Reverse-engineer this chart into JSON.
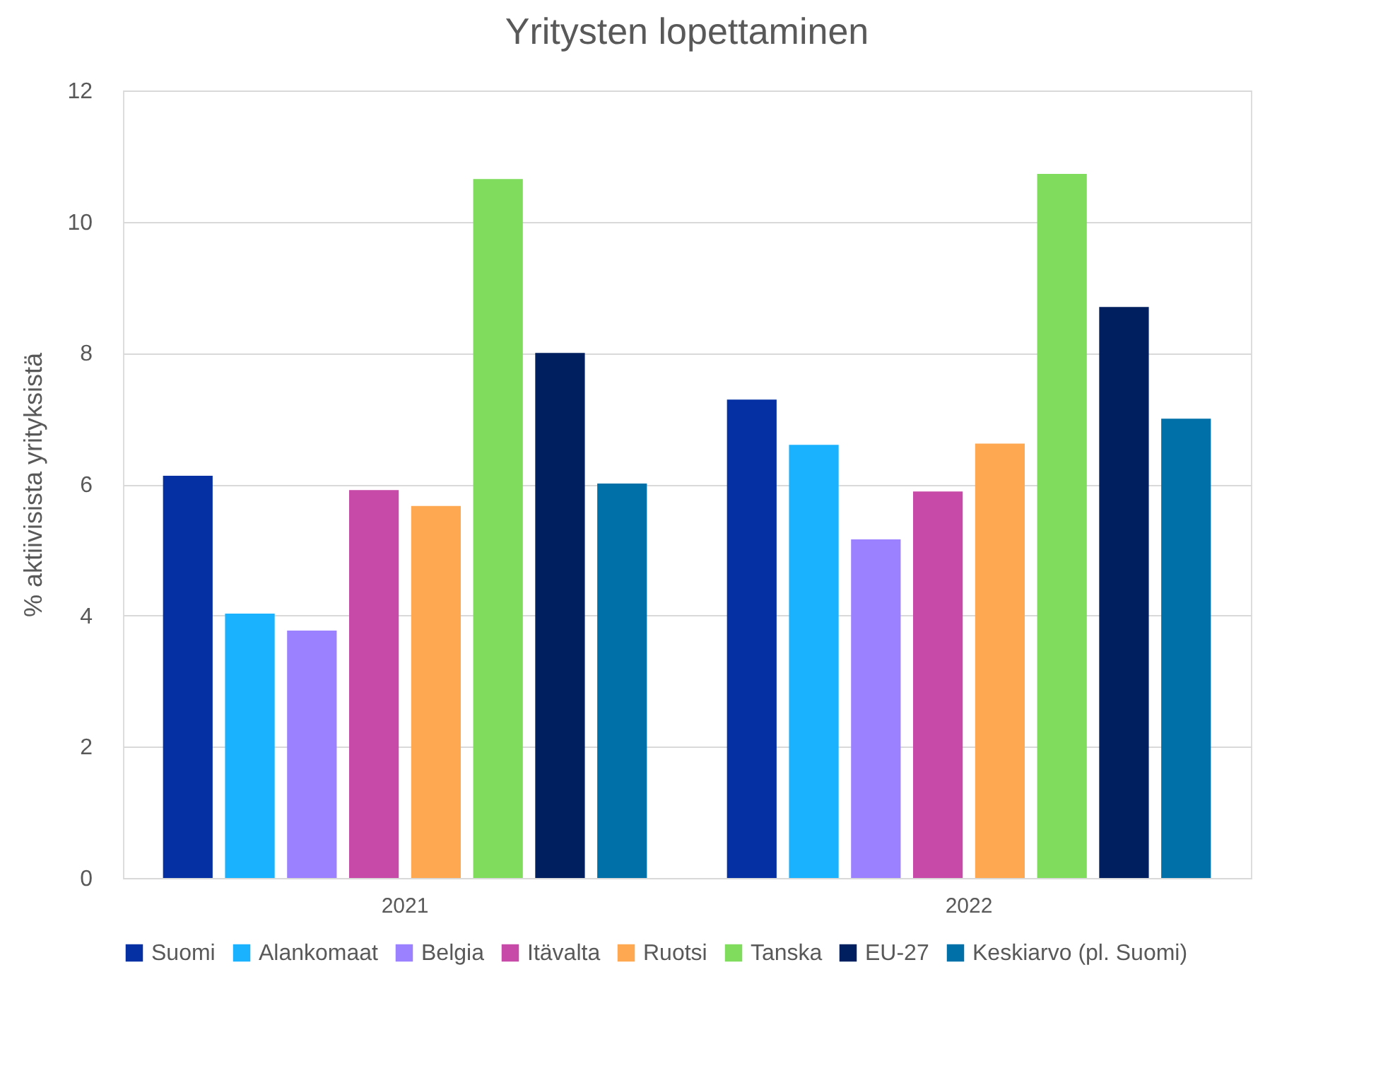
{
  "chart_data": {
    "type": "bar",
    "title": "Yritysten lopettaminen",
    "ylabel": "% aktiivisista yrityksistä",
    "categories": [
      "2021",
      "2022"
    ],
    "series": [
      {
        "name": "Suomi",
        "color": "#0530a4",
        "values": [
          6.13,
          7.29
        ]
      },
      {
        "name": "Alankomaat",
        "color": "#1ab2ff",
        "values": [
          4.03,
          6.6
        ]
      },
      {
        "name": "Belgia",
        "color": "#9b80ff",
        "values": [
          3.77,
          5.16
        ]
      },
      {
        "name": "Itävalta",
        "color": "#c84aa8",
        "values": [
          5.91,
          5.89
        ]
      },
      {
        "name": "Ruotsi",
        "color": "#ffa852",
        "values": [
          5.67,
          6.62
        ]
      },
      {
        "name": "Tanska",
        "color": "#7fdc5c",
        "values": [
          10.65,
          10.73
        ]
      },
      {
        "name": "EU-27",
        "color": "#001f5e",
        "values": [
          8.0,
          8.7
        ]
      },
      {
        "name": "Keskiarvo (pl. Suomi)",
        "color": "#0070a8",
        "values": [
          6.01,
          7.0
        ]
      }
    ],
    "ylim": [
      0,
      12
    ],
    "yticks": [
      0,
      2,
      4,
      6,
      8,
      10,
      12
    ],
    "grid": "y",
    "legend": "bottom"
  }
}
